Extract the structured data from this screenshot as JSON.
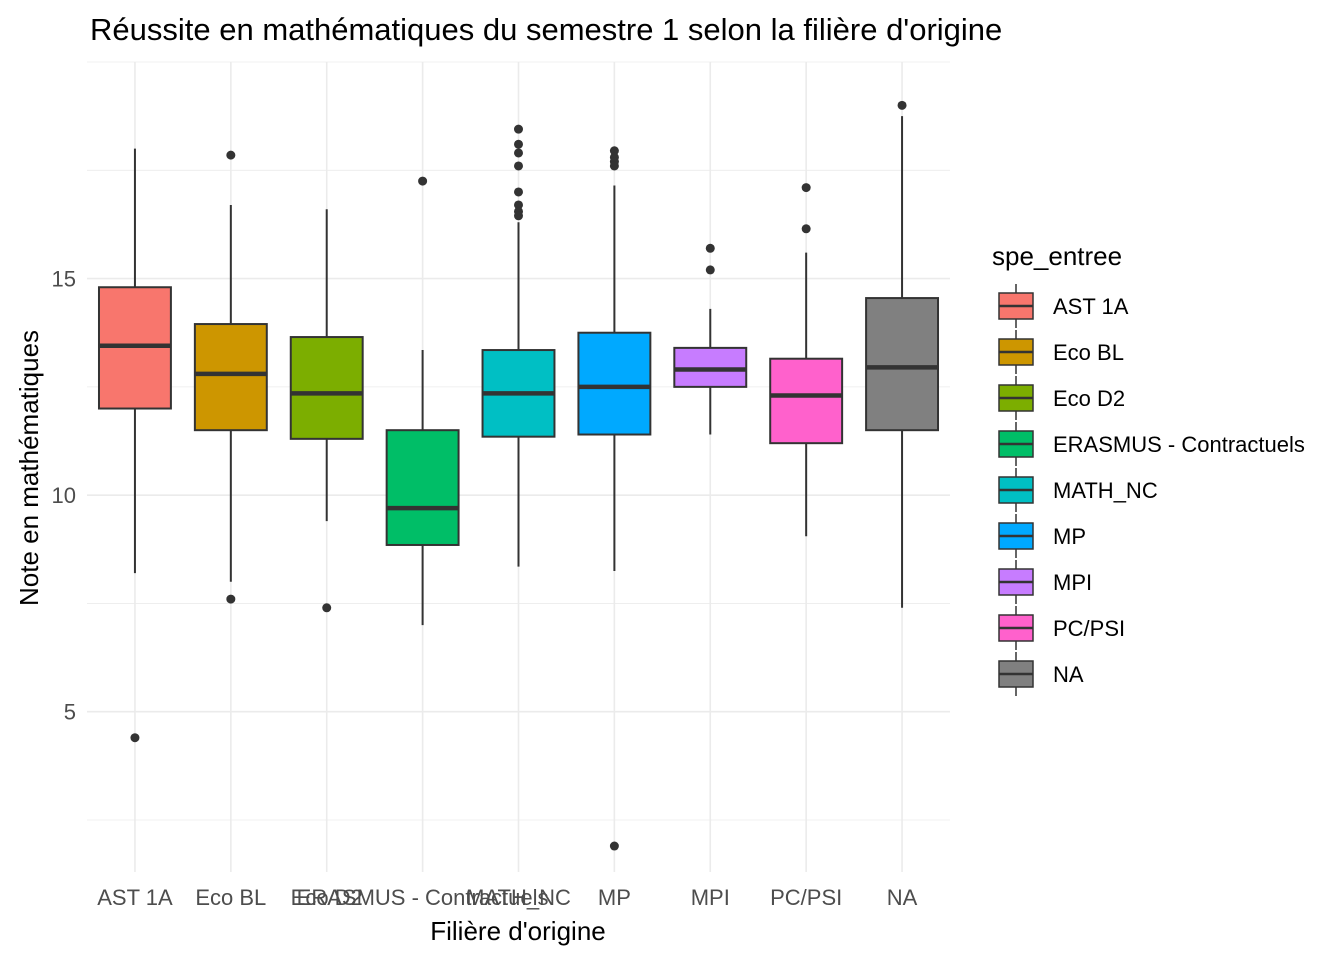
{
  "chart_data": {
    "type": "boxplot",
    "title": "Réussite en mathématiques du semestre 1 selon la filière d'origine",
    "xlabel": "Filière d'origine",
    "ylabel": "Note en mathématiques",
    "ylim": [
      1.3,
      20.0
    ],
    "y_ticks": [
      5,
      10,
      15
    ],
    "grid": true,
    "legend": {
      "title": "spe_entree",
      "position": "right"
    },
    "categories": [
      "AST 1A",
      "Eco BL",
      "Eco D2",
      "ERASMUS - Contractuels",
      "MATH_NC",
      "MP",
      "MPI",
      "PC/PSI",
      "NA"
    ],
    "colors": [
      "#F8766D",
      "#CD9600",
      "#7CAE00",
      "#00BE67",
      "#00BFC4",
      "#00A9FF",
      "#C77CFF",
      "#FF61CC",
      "#808080"
    ],
    "boxes": [
      {
        "whisker_low": 8.2,
        "q1": 12.0,
        "median": 13.45,
        "q3": 14.8,
        "whisker_high": 18.0,
        "outliers": [
          4.4
        ]
      },
      {
        "whisker_low": 8.0,
        "q1": 11.5,
        "median": 12.8,
        "q3": 13.95,
        "whisker_high": 16.7,
        "outliers": [
          17.85,
          7.6
        ]
      },
      {
        "whisker_low": 9.4,
        "q1": 11.3,
        "median": 12.35,
        "q3": 13.65,
        "whisker_high": 16.6,
        "outliers": [
          7.4
        ]
      },
      {
        "whisker_low": 7.0,
        "q1": 8.85,
        "median": 9.7,
        "q3": 11.5,
        "whisker_high": 13.35,
        "outliers": [
          17.25
        ]
      },
      {
        "whisker_low": 8.35,
        "q1": 11.35,
        "median": 12.35,
        "q3": 13.35,
        "whisker_high": 16.3,
        "outliers": [
          18.45,
          18.1,
          17.9,
          17.6,
          17.0,
          16.7,
          16.55,
          16.45
        ]
      },
      {
        "whisker_low": 8.25,
        "q1": 11.4,
        "median": 12.5,
        "q3": 13.75,
        "whisker_high": 17.15,
        "outliers": [
          17.95,
          17.8,
          17.7,
          17.6,
          1.9
        ]
      },
      {
        "whisker_low": 11.4,
        "q1": 12.5,
        "median": 12.9,
        "q3": 13.4,
        "whisker_high": 14.3,
        "outliers": [
          15.7,
          15.2
        ]
      },
      {
        "whisker_low": 9.05,
        "q1": 11.2,
        "median": 12.3,
        "q3": 13.15,
        "whisker_high": 15.6,
        "outliers": [
          17.1,
          16.15
        ]
      },
      {
        "whisker_low": 7.4,
        "q1": 11.5,
        "median": 12.95,
        "q3": 14.55,
        "whisker_high": 18.75,
        "outliers": [
          19.0
        ]
      }
    ]
  }
}
